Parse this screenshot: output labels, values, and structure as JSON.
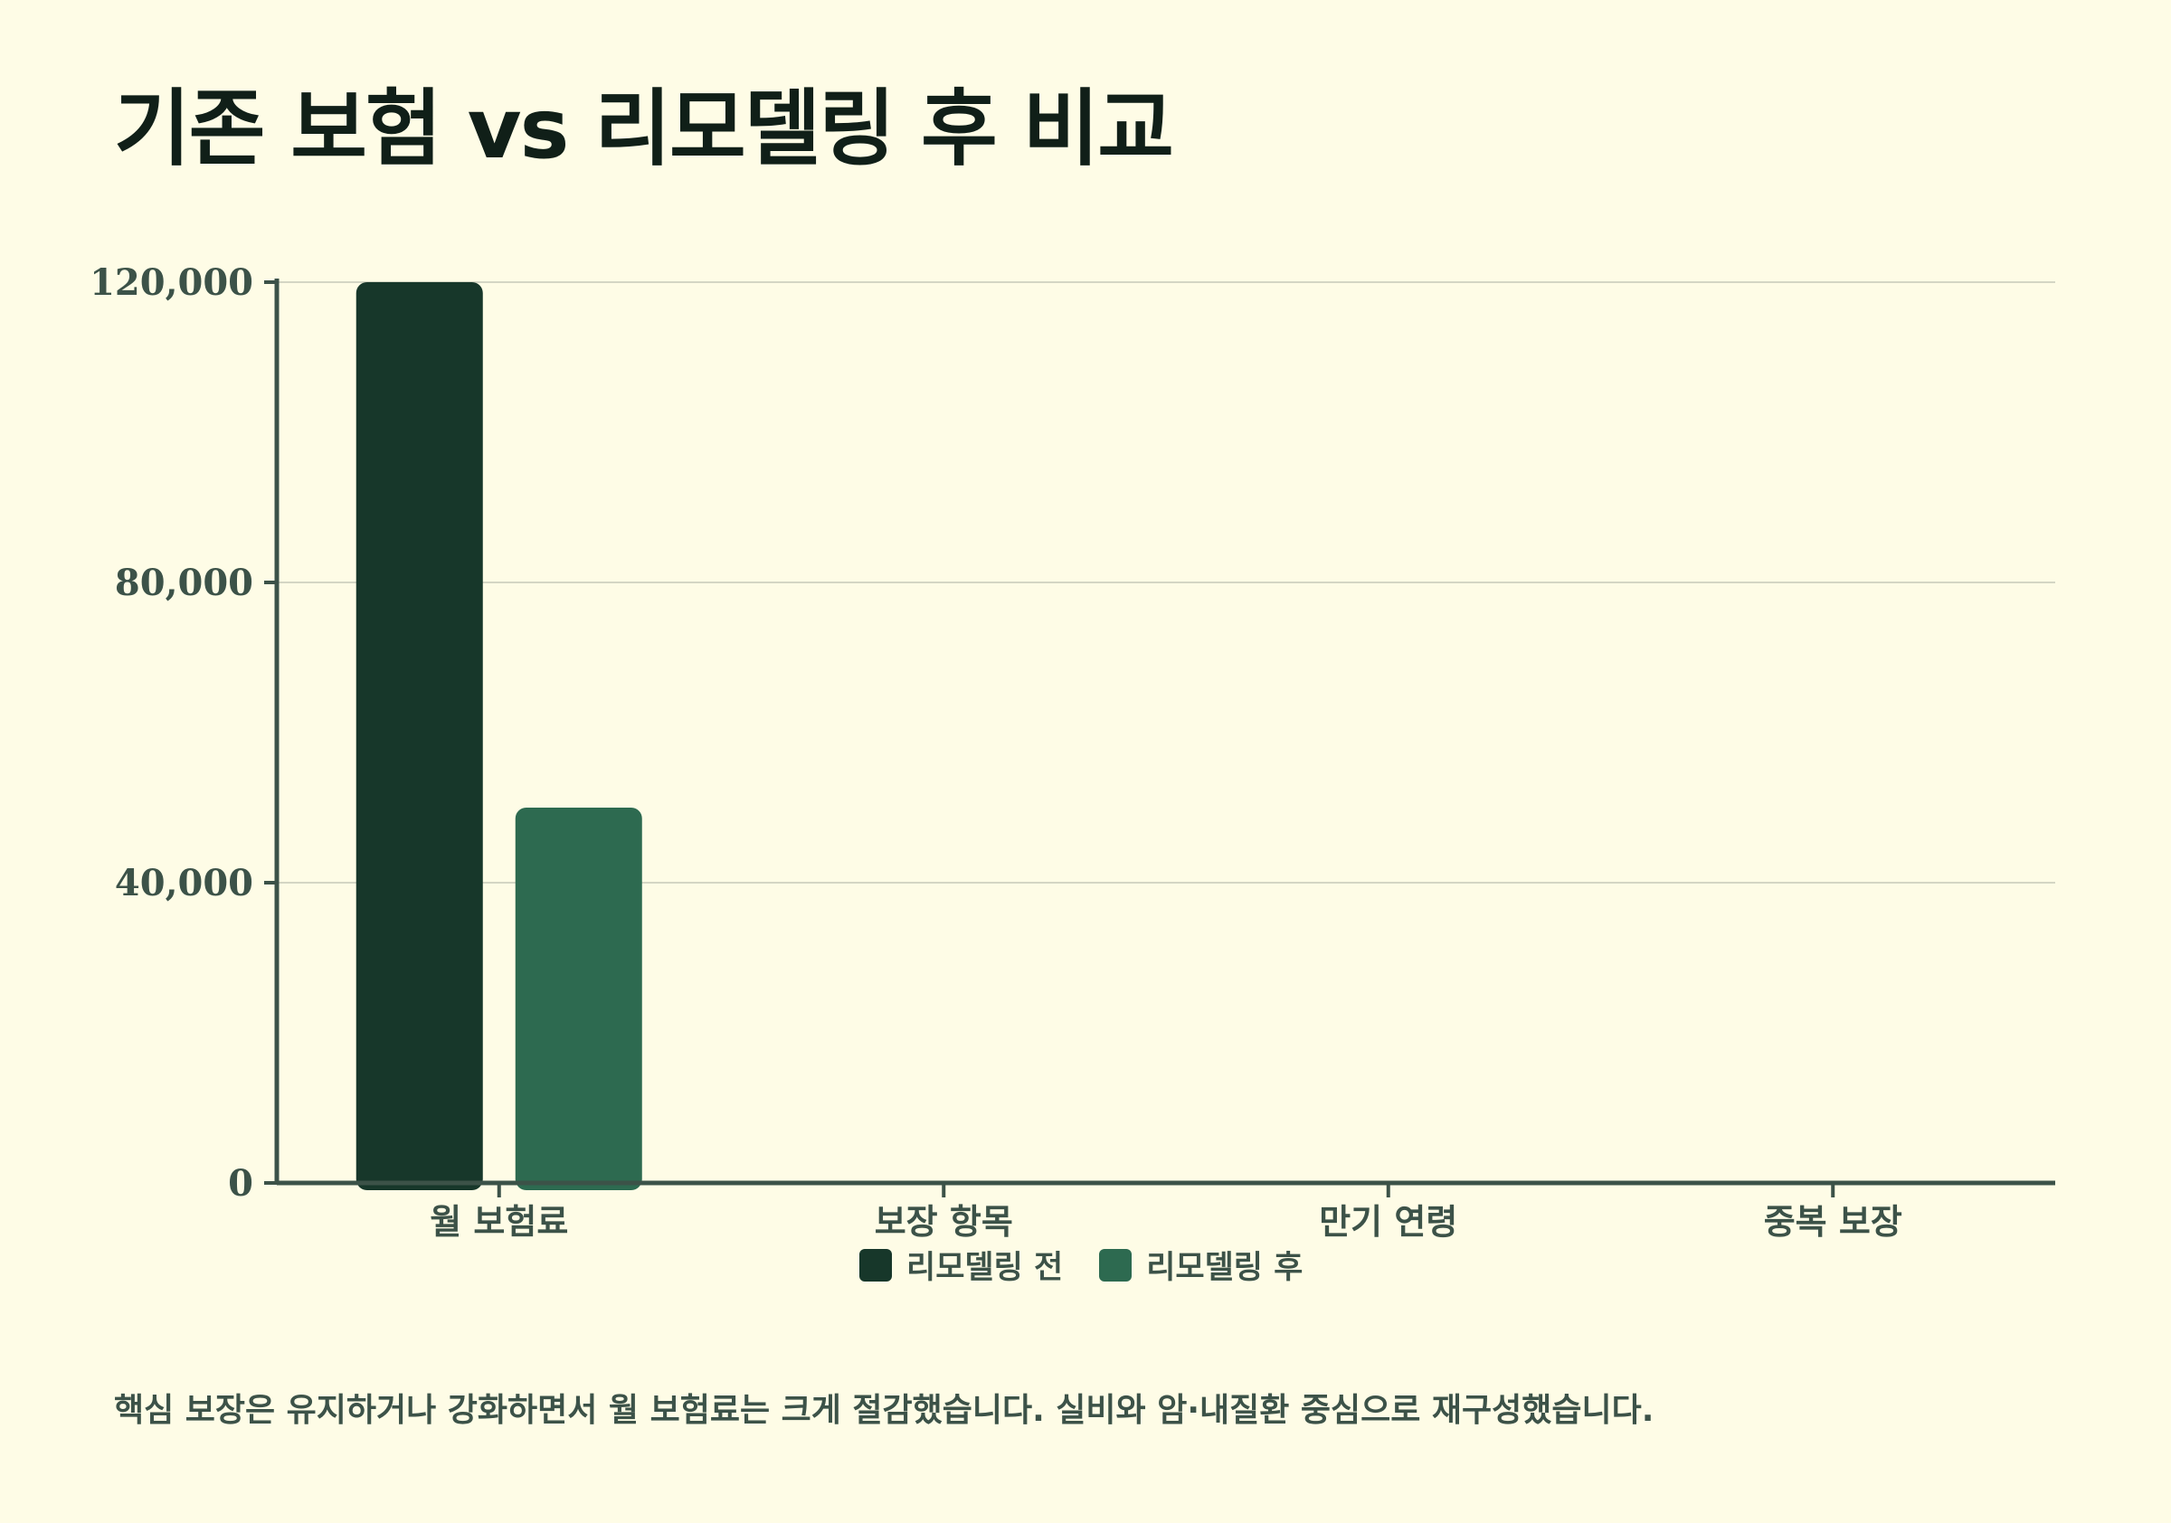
{
  "title": "기존 보험 vs 리모델링 후 비교",
  "note": "핵심 보장은 유지하거나 강화하면서 월 보험료는 크게 절감했습니다. 실비와 암·내질환 중심으로 재구성했습니다.",
  "legend": [
    {
      "label": "리모델링 전",
      "color": "#17372a"
    },
    {
      "label": "리모델링 후",
      "color": "#2d6a50"
    }
  ],
  "chart_data": {
    "type": "bar",
    "title": "기존 보험 vs 리모델링 후 비교",
    "categories": [
      "월 보험료",
      "보장 항목",
      "만기 연령",
      "중복 보장"
    ],
    "series": [
      {
        "name": "리모델링 전",
        "values": [
          120000,
          0,
          0,
          0
        ],
        "color": "#17372a"
      },
      {
        "name": "리모델링 후",
        "values": [
          50000,
          0,
          0,
          0
        ],
        "color": "#2d6a50"
      }
    ],
    "yticks": [
      "0",
      "40,000",
      "80,000",
      "120,000"
    ],
    "ylim": [
      0,
      120000
    ],
    "grid": true,
    "legend_position": "bottom-center"
  }
}
